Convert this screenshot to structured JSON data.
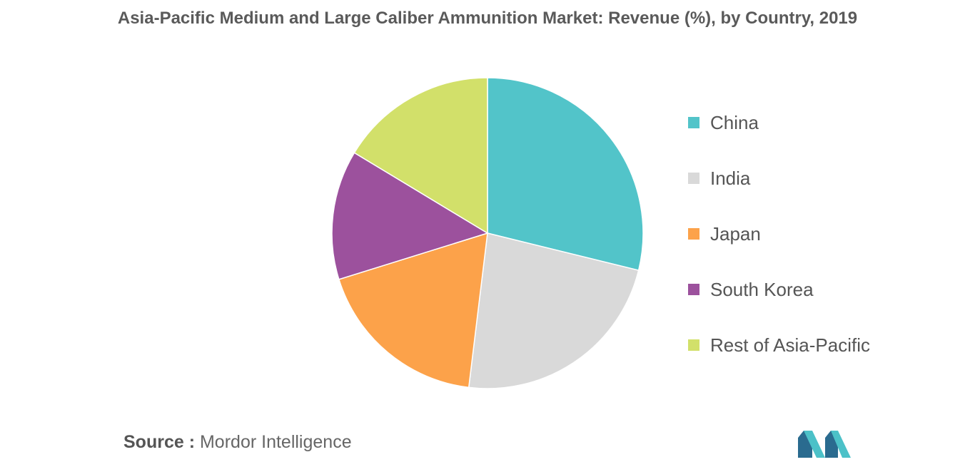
{
  "colors": {
    "china": "#52c4c9",
    "india": "#d9d9d9",
    "japan": "#fca24a",
    "south_korea": "#9c519d",
    "rest": "#d2e06a",
    "logo_dark": "#2a6b8f",
    "logo_light": "#4cc1c8"
  },
  "chart_data": {
    "type": "pie",
    "title": "Asia-Pacific Medium and Large Caliber Ammunition Market: Revenue (%), by Country, 2019",
    "legend_position": "right",
    "slices": [
      {
        "label": "China",
        "value": 30,
        "color": "#52c4c9"
      },
      {
        "label": "India",
        "value": 24,
        "color": "#d9d9d9"
      },
      {
        "label": "Japan",
        "value": 19,
        "color": "#fca24a"
      },
      {
        "label": "South Korea",
        "value": 14,
        "color": "#9c519d"
      },
      {
        "label": "Rest of Asia-Pacific",
        "value": 17,
        "color": "#d2e06a"
      }
    ]
  },
  "source": {
    "label": "Source :",
    "text": "Mordor Intelligence"
  },
  "logo": {
    "icon": "mordor-intelligence-logo"
  }
}
